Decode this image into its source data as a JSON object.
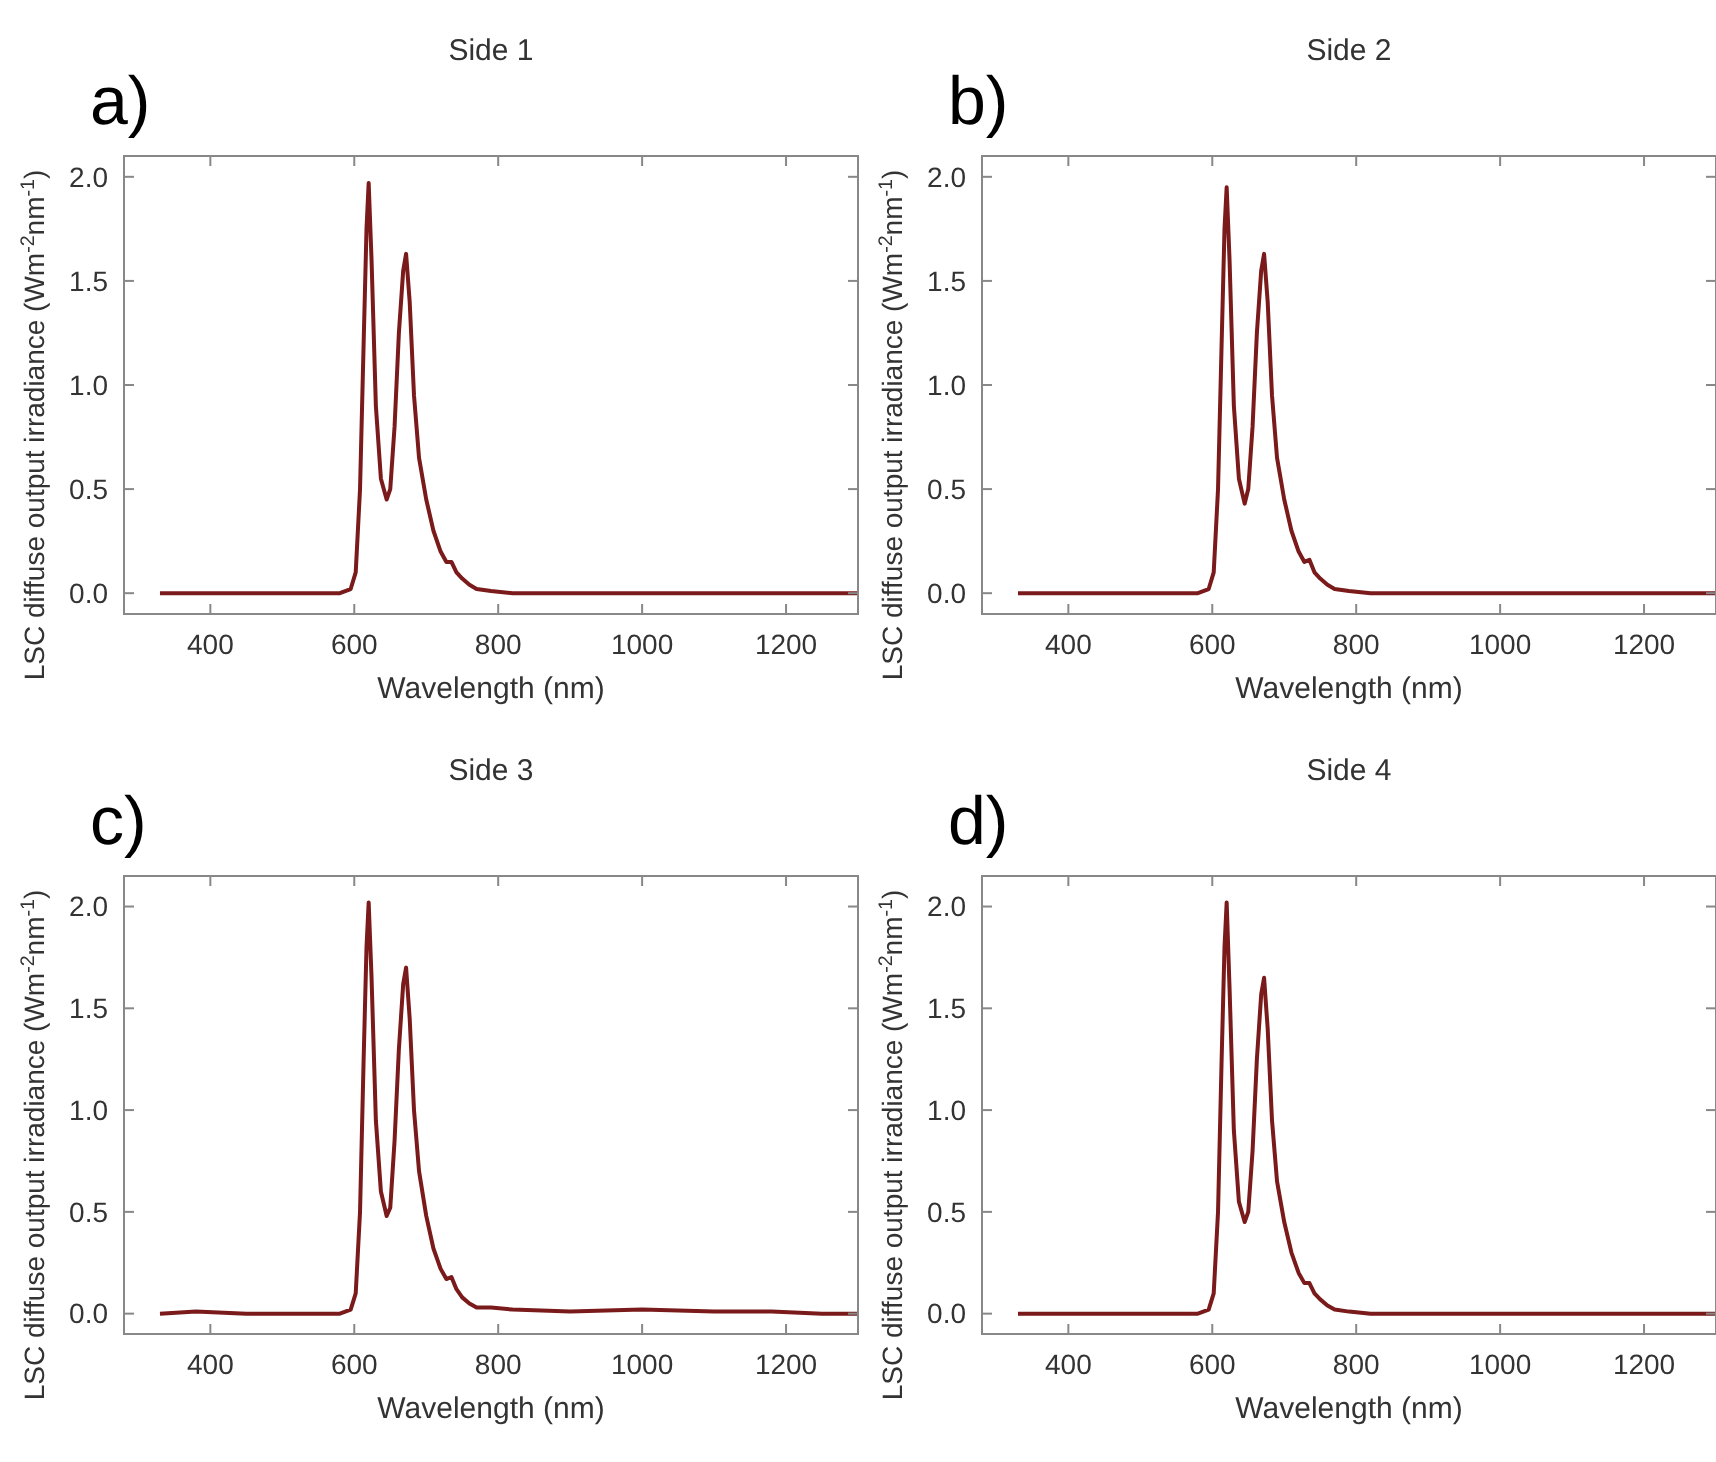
{
  "chart_data": [
    {
      "type": "line",
      "title": "Side 1",
      "xlabel": "Wavelength (nm)",
      "ylabel": "LSC diffuse output irradiance (Wm$^{-2}$nm$^{-1}$)",
      "annotations": [
        "a)"
      ],
      "xlim": [
        280,
        1300
      ],
      "ylim": [
        -0.1,
        2.1
      ],
      "xticks": [
        400,
        600,
        800,
        1000,
        1200
      ],
      "yticks": [
        {
          "value": 0,
          "label": "0.0"
        },
        {
          "value": 0.5,
          "label": "0.5"
        },
        {
          "value": 1,
          "label": "1.0"
        },
        {
          "value": 1.5,
          "label": "1.5"
        },
        {
          "value": 2,
          "label": "2.0"
        }
      ],
      "series": [
        {
          "color": "#7a1a1a",
          "x": [
            330,
            400,
            500,
            580,
            595,
            602,
            608,
            613,
            617,
            620,
            624,
            630,
            637,
            645,
            650,
            656,
            662,
            668,
            672,
            677,
            683,
            690,
            700,
            710,
            720,
            728,
            735,
            742,
            750,
            760,
            770,
            790,
            820,
            900,
            1000,
            1100,
            1200,
            1300
          ],
          "values": [
            0,
            0,
            0,
            0,
            0.02,
            0.1,
            0.5,
            1.2,
            1.75,
            1.97,
            1.6,
            0.9,
            0.55,
            0.45,
            0.5,
            0.8,
            1.25,
            1.55,
            1.63,
            1.4,
            0.95,
            0.65,
            0.45,
            0.3,
            0.2,
            0.15,
            0.15,
            0.1,
            0.07,
            0.04,
            0.02,
            0.01,
            0,
            0,
            0,
            0,
            0,
            0
          ]
        }
      ]
    },
    {
      "type": "line",
      "title": "Side 2",
      "xlabel": "Wavelength (nm)",
      "ylabel": "LSC diffuse output irradiance (Wm$^{-2}$nm$^{-1}$)",
      "annotations": [
        "b)"
      ],
      "xlim": [
        280,
        1300
      ],
      "ylim": [
        -0.1,
        2.1
      ],
      "xticks": [
        400,
        600,
        800,
        1000,
        1200
      ],
      "yticks": [
        {
          "value": 0,
          "label": "0.0"
        },
        {
          "value": 0.5,
          "label": "0.5"
        },
        {
          "value": 1,
          "label": "1.0"
        },
        {
          "value": 1.5,
          "label": "1.5"
        },
        {
          "value": 2,
          "label": "2.0"
        }
      ],
      "series": [
        {
          "color": "#7a1a1a",
          "x": [
            330,
            400,
            500,
            580,
            595,
            602,
            608,
            613,
            617,
            620,
            624,
            630,
            637,
            645,
            650,
            656,
            662,
            668,
            672,
            677,
            683,
            690,
            700,
            710,
            720,
            728,
            735,
            742,
            750,
            760,
            770,
            790,
            820,
            900,
            1000,
            1100,
            1200,
            1300
          ],
          "values": [
            0,
            0,
            0,
            0,
            0.02,
            0.1,
            0.5,
            1.2,
            1.75,
            1.95,
            1.6,
            0.9,
            0.55,
            0.43,
            0.5,
            0.8,
            1.25,
            1.55,
            1.63,
            1.4,
            0.95,
            0.65,
            0.45,
            0.3,
            0.2,
            0.15,
            0.16,
            0.1,
            0.07,
            0.04,
            0.02,
            0.01,
            0,
            0,
            0,
            0,
            0,
            0
          ]
        }
      ]
    },
    {
      "type": "line",
      "title": "Side 3",
      "xlabel": "Wavelength (nm)",
      "ylabel": "LSC diffuse output irradiance (Wm$^{-2}$nm$^{-1}$)",
      "annotations": [
        "c)"
      ],
      "xlim": [
        280,
        1300
      ],
      "ylim": [
        -0.1,
        2.15
      ],
      "xticks": [
        400,
        600,
        800,
        1000,
        1200
      ],
      "yticks": [
        {
          "value": 0,
          "label": "0.0"
        },
        {
          "value": 0.5,
          "label": "0.5"
        },
        {
          "value": 1,
          "label": "1.0"
        },
        {
          "value": 1.5,
          "label": "1.5"
        },
        {
          "value": 2,
          "label": "2.0"
        }
      ],
      "series": [
        {
          "color": "#7a1a1a",
          "x": [
            330,
            380,
            450,
            500,
            580,
            595,
            602,
            608,
            613,
            617,
            620,
            624,
            630,
            637,
            645,
            650,
            656,
            662,
            668,
            672,
            677,
            683,
            690,
            700,
            710,
            720,
            728,
            735,
            742,
            750,
            760,
            770,
            790,
            820,
            900,
            1000,
            1100,
            1180,
            1250,
            1300
          ],
          "values": [
            0,
            0.01,
            0,
            0,
            0,
            0.02,
            0.1,
            0.5,
            1.25,
            1.8,
            2.02,
            1.65,
            0.95,
            0.6,
            0.48,
            0.52,
            0.85,
            1.3,
            1.62,
            1.7,
            1.45,
            1.0,
            0.7,
            0.48,
            0.32,
            0.22,
            0.17,
            0.18,
            0.12,
            0.08,
            0.05,
            0.03,
            0.03,
            0.02,
            0.01,
            0.02,
            0.01,
            0.01,
            0,
            0
          ]
        }
      ]
    },
    {
      "type": "line",
      "title": "Side 4",
      "xlabel": "Wavelength (nm)",
      "ylabel": "LSC diffuse output irradiance (Wm$^{-2}$nm$^{-1}$)",
      "annotations": [
        "d)"
      ],
      "xlim": [
        280,
        1300
      ],
      "ylim": [
        -0.1,
        2.15
      ],
      "xticks": [
        400,
        600,
        800,
        1000,
        1200
      ],
      "yticks": [
        {
          "value": 0,
          "label": "0.0"
        },
        {
          "value": 0.5,
          "label": "0.5"
        },
        {
          "value": 1,
          "label": "1.0"
        },
        {
          "value": 1.5,
          "label": "1.5"
        },
        {
          "value": 2,
          "label": "2.0"
        }
      ],
      "series": [
        {
          "color": "#7a1a1a",
          "x": [
            330,
            400,
            500,
            580,
            595,
            602,
            608,
            613,
            617,
            620,
            624,
            630,
            637,
            645,
            650,
            656,
            662,
            668,
            672,
            677,
            683,
            690,
            700,
            710,
            720,
            728,
            735,
            742,
            750,
            760,
            770,
            790,
            820,
            900,
            1000,
            1100,
            1200,
            1300
          ],
          "values": [
            0,
            0,
            0,
            0,
            0.02,
            0.1,
            0.5,
            1.25,
            1.8,
            2.02,
            1.6,
            0.9,
            0.55,
            0.45,
            0.5,
            0.8,
            1.25,
            1.57,
            1.65,
            1.4,
            0.95,
            0.65,
            0.45,
            0.3,
            0.2,
            0.15,
            0.15,
            0.1,
            0.07,
            0.04,
            0.02,
            0.01,
            0,
            0,
            0,
            0,
            0,
            0
          ]
        }
      ]
    }
  ]
}
